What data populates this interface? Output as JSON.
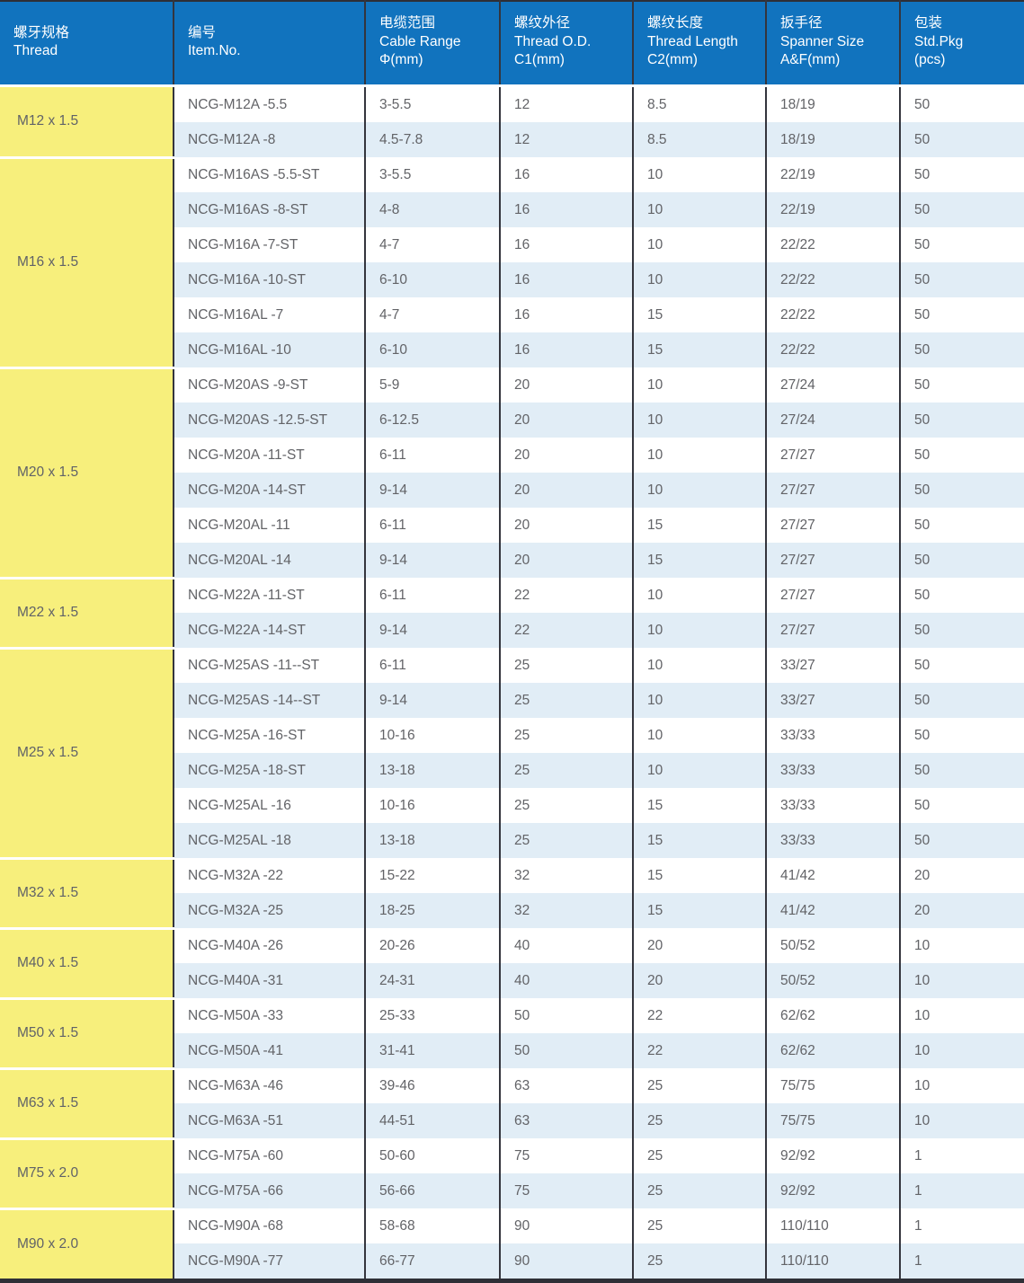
{
  "table": {
    "columns": [
      {
        "zh": "螺牙规格",
        "en": "Thread",
        "sub": ""
      },
      {
        "zh": "编号",
        "en": "Item.No.",
        "sub": ""
      },
      {
        "zh": "电缆范围",
        "en": "Cable Range",
        "sub": "Φ(mm)"
      },
      {
        "zh": "螺纹外径",
        "en": "Thread O.D.",
        "sub": "C1(mm)"
      },
      {
        "zh": "螺纹长度",
        "en": "Thread Length",
        "sub": "C2(mm)"
      },
      {
        "zh": "扳手径",
        "en": "Spanner Size",
        "sub": "A&F(mm)"
      },
      {
        "zh": "包装",
        "en": "Std.Pkg",
        "sub": "(pcs)"
      }
    ],
    "groups": [
      {
        "thread": "M12 x 1.5",
        "rows": [
          {
            "item": "NCG-M12A -5.5",
            "cable_range": "3-5.5",
            "thread_od": "12",
            "thread_length": "8.5",
            "spanner": "18/19",
            "pkg": "50"
          },
          {
            "item": "NCG-M12A -8",
            "cable_range": "4.5-7.8",
            "thread_od": "12",
            "thread_length": "8.5",
            "spanner": "18/19",
            "pkg": "50"
          }
        ]
      },
      {
        "thread": "M16 x 1.5",
        "rows": [
          {
            "item": "NCG-M16AS -5.5-ST",
            "cable_range": "3-5.5",
            "thread_od": "16",
            "thread_length": "10",
            "spanner": "22/19",
            "pkg": "50"
          },
          {
            "item": "NCG-M16AS -8-ST",
            "cable_range": "4-8",
            "thread_od": "16",
            "thread_length": "10",
            "spanner": "22/19",
            "pkg": "50"
          },
          {
            "item": "NCG-M16A -7-ST",
            "cable_range": "4-7",
            "thread_od": "16",
            "thread_length": "10",
            "spanner": "22/22",
            "pkg": "50"
          },
          {
            "item": "NCG-M16A -10-ST",
            "cable_range": "6-10",
            "thread_od": "16",
            "thread_length": "10",
            "spanner": "22/22",
            "pkg": "50"
          },
          {
            "item": "NCG-M16AL -7",
            "cable_range": "4-7",
            "thread_od": "16",
            "thread_length": "15",
            "spanner": "22/22",
            "pkg": "50"
          },
          {
            "item": "NCG-M16AL -10",
            "cable_range": "6-10",
            "thread_od": "16",
            "thread_length": "15",
            "spanner": "22/22",
            "pkg": "50"
          }
        ]
      },
      {
        "thread": "M20 x 1.5",
        "rows": [
          {
            "item": "NCG-M20AS -9-ST",
            "cable_range": "5-9",
            "thread_od": "20",
            "thread_length": "10",
            "spanner": "27/24",
            "pkg": "50"
          },
          {
            "item": "NCG-M20AS -12.5-ST",
            "cable_range": "6-12.5",
            "thread_od": "20",
            "thread_length": "10",
            "spanner": "27/24",
            "pkg": "50"
          },
          {
            "item": "NCG-M20A -11-ST",
            "cable_range": "6-11",
            "thread_od": "20",
            "thread_length": "10",
            "spanner": "27/27",
            "pkg": "50"
          },
          {
            "item": "NCG-M20A -14-ST",
            "cable_range": "9-14",
            "thread_od": "20",
            "thread_length": "10",
            "spanner": "27/27",
            "pkg": "50"
          },
          {
            "item": "NCG-M20AL -11",
            "cable_range": "6-11",
            "thread_od": "20",
            "thread_length": "15",
            "spanner": "27/27",
            "pkg": "50"
          },
          {
            "item": "NCG-M20AL -14",
            "cable_range": "9-14",
            "thread_od": "20",
            "thread_length": "15",
            "spanner": "27/27",
            "pkg": "50"
          }
        ]
      },
      {
        "thread": "M22 x 1.5",
        "rows": [
          {
            "item": "NCG-M22A -11-ST",
            "cable_range": "6-11",
            "thread_od": "22",
            "thread_length": "10",
            "spanner": "27/27",
            "pkg": "50"
          },
          {
            "item": "NCG-M22A -14-ST",
            "cable_range": "9-14",
            "thread_od": "22",
            "thread_length": "10",
            "spanner": "27/27",
            "pkg": "50"
          }
        ]
      },
      {
        "thread": "M25 x 1.5",
        "rows": [
          {
            "item": "NCG-M25AS -11--ST",
            "cable_range": "6-11",
            "thread_od": "25",
            "thread_length": "10",
            "spanner": "33/27",
            "pkg": "50"
          },
          {
            "item": "NCG-M25AS -14--ST",
            "cable_range": "9-14",
            "thread_od": "25",
            "thread_length": "10",
            "spanner": "33/27",
            "pkg": "50"
          },
          {
            "item": "NCG-M25A -16-ST",
            "cable_range": "10-16",
            "thread_od": "25",
            "thread_length": "10",
            "spanner": "33/33",
            "pkg": "50"
          },
          {
            "item": "NCG-M25A -18-ST",
            "cable_range": "13-18",
            "thread_od": "25",
            "thread_length": "10",
            "spanner": "33/33",
            "pkg": "50"
          },
          {
            "item": "NCG-M25AL -16",
            "cable_range": "10-16",
            "thread_od": "25",
            "thread_length": "15",
            "spanner": "33/33",
            "pkg": "50"
          },
          {
            "item": "NCG-M25AL -18",
            "cable_range": "13-18",
            "thread_od": "25",
            "thread_length": "15",
            "spanner": "33/33",
            "pkg": "50"
          }
        ]
      },
      {
        "thread": "M32 x 1.5",
        "rows": [
          {
            "item": "NCG-M32A -22",
            "cable_range": "15-22",
            "thread_od": "32",
            "thread_length": "15",
            "spanner": "41/42",
            "pkg": "20"
          },
          {
            "item": "NCG-M32A -25",
            "cable_range": "18-25",
            "thread_od": "32",
            "thread_length": "15",
            "spanner": "41/42",
            "pkg": "20"
          }
        ]
      },
      {
        "thread": "M40 x 1.5",
        "rows": [
          {
            "item": "NCG-M40A -26",
            "cable_range": "20-26",
            "thread_od": "40",
            "thread_length": "20",
            "spanner": "50/52",
            "pkg": "10"
          },
          {
            "item": "NCG-M40A -31",
            "cable_range": "24-31",
            "thread_od": "40",
            "thread_length": "20",
            "spanner": "50/52",
            "pkg": "10"
          }
        ]
      },
      {
        "thread": "M50 x 1.5",
        "rows": [
          {
            "item": "NCG-M50A -33",
            "cable_range": "25-33",
            "thread_od": "50",
            "thread_length": "22",
            "spanner": "62/62",
            "pkg": "10"
          },
          {
            "item": "NCG-M50A -41",
            "cable_range": "31-41",
            "thread_od": "50",
            "thread_length": "22",
            "spanner": "62/62",
            "pkg": "10"
          }
        ]
      },
      {
        "thread": "M63 x 1.5",
        "rows": [
          {
            "item": "NCG-M63A -46",
            "cable_range": "39-46",
            "thread_od": "63",
            "thread_length": "25",
            "spanner": "75/75",
            "pkg": "10"
          },
          {
            "item": "NCG-M63A -51",
            "cable_range": "44-51",
            "thread_od": "63",
            "thread_length": "25",
            "spanner": "75/75",
            "pkg": "10"
          }
        ]
      },
      {
        "thread": "M75 x 2.0",
        "rows": [
          {
            "item": "NCG-M75A -60",
            "cable_range": "50-60",
            "thread_od": "75",
            "thread_length": "25",
            "spanner": "92/92",
            "pkg": "1"
          },
          {
            "item": "NCG-M75A -66",
            "cable_range": "56-66",
            "thread_od": "75",
            "thread_length": "25",
            "spanner": "92/92",
            "pkg": "1"
          }
        ]
      },
      {
        "thread": "M90 x 2.0",
        "rows": [
          {
            "item": "NCG-M90A -68",
            "cable_range": "58-68",
            "thread_od": "90",
            "thread_length": "25",
            "spanner": "110/110",
            "pkg": "1"
          },
          {
            "item": "NCG-M90A -77",
            "cable_range": "66-77",
            "thread_od": "90",
            "thread_length": "25",
            "spanner": "110/110",
            "pkg": "1"
          }
        ]
      }
    ],
    "colors": {
      "header_bg": "#1173be",
      "header_text": "#ffffff",
      "thread_column_bg": "#f7ef7c",
      "row_bg": "#ffffff",
      "row_alt_bg": "#e1edf6",
      "grid_line": "#34353d",
      "body_text": "#626367"
    }
  }
}
